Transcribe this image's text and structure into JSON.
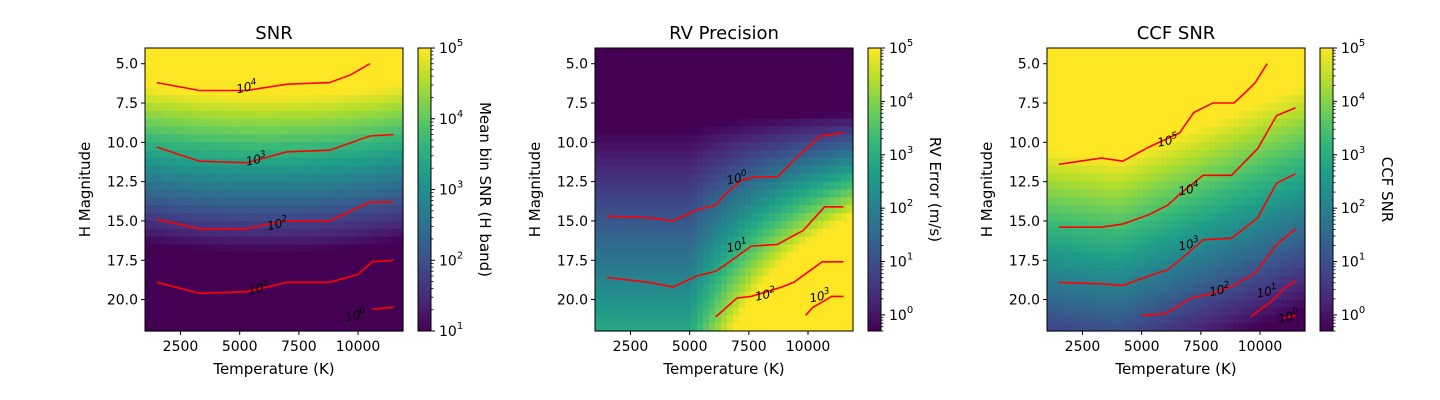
{
  "chart_data": [
    {
      "type": "heatmap",
      "title": "SNR",
      "xlabel": "Temperature (K)",
      "ylabel": "H Magnitude",
      "xlim": [
        1000,
        11900
      ],
      "ylim": [
        4.0,
        22.0
      ],
      "y_inverted": true,
      "xticks": [
        2500,
        5000,
        7500,
        10000
      ],
      "xtick_labels": [
        "2500",
        "5000",
        "7500",
        "10000"
      ],
      "yticks": [
        5.0,
        7.5,
        10.0,
        12.5,
        15.0,
        17.5,
        20.0
      ],
      "ytick_labels": [
        "5.0",
        "7.5",
        "10.0",
        "12.5",
        "15.0",
        "17.5",
        "20.0"
      ],
      "colorbar": {
        "label": "Mean bin SNR (H band)",
        "scale": "log",
        "range": [
          10,
          100000
        ],
        "ticks": [
          {
            "exp": 1,
            "base": "10",
            "sup": "1"
          },
          {
            "exp": 2,
            "base": "10",
            "sup": "2"
          },
          {
            "exp": 3,
            "base": "10",
            "sup": "3"
          },
          {
            "exp": 4,
            "base": "10",
            "sup": "4"
          },
          {
            "exp": 5,
            "base": "10",
            "sup": "5"
          }
        ]
      },
      "contour_color": "#ff0000",
      "contours": [
        {
          "level": "10^4",
          "base": "10",
          "sup": "4",
          "label_at": [
            5300,
            6.5
          ],
          "points": [
            [
              1500,
              6.2
            ],
            [
              3300,
              6.7
            ],
            [
              5300,
              6.7
            ],
            [
              7000,
              6.3
            ],
            [
              8800,
              6.2
            ],
            [
              9700,
              5.7
            ],
            [
              10500,
              5.0
            ]
          ]
        },
        {
          "level": "10^3",
          "base": "10",
          "sup": "3",
          "label_at": [
            5700,
            11.1
          ],
          "points": [
            [
              1500,
              10.3
            ],
            [
              3300,
              11.2
            ],
            [
              5300,
              11.3
            ],
            [
              7000,
              10.6
            ],
            [
              8800,
              10.5
            ],
            [
              10500,
              9.6
            ],
            [
              11500,
              9.5
            ]
          ]
        },
        {
          "level": "10^2",
          "base": "10",
          "sup": "2",
          "label_at": [
            6600,
            15.2
          ],
          "points": [
            [
              1500,
              14.9
            ],
            [
              3300,
              15.5
            ],
            [
              5300,
              15.5
            ],
            [
              6900,
              15.0
            ],
            [
              8800,
              15.0
            ],
            [
              10500,
              13.8
            ],
            [
              11500,
              13.8
            ]
          ]
        },
        {
          "level": "10^1",
          "base": "10",
          "sup": "1",
          "label_at": [
            5800,
            19.3
          ],
          "points": [
            [
              1500,
              18.9
            ],
            [
              3300,
              19.6
            ],
            [
              5300,
              19.5
            ],
            [
              7000,
              18.9
            ],
            [
              8800,
              18.9
            ],
            [
              10000,
              18.4
            ],
            [
              10600,
              17.6
            ],
            [
              11500,
              17.5
            ]
          ]
        },
        {
          "level": "10^0",
          "base": "10",
          "sup": "0",
          "label_at": [
            9900,
            21.0
          ],
          "points": [
            [
              10600,
              20.6
            ],
            [
              11500,
              20.5
            ]
          ]
        }
      ]
    },
    {
      "type": "heatmap",
      "title": "RV Precision",
      "xlabel": "Temperature (K)",
      "ylabel": "H Magnitude",
      "xlim": [
        1000,
        11900
      ],
      "ylim": [
        4.0,
        22.0
      ],
      "y_inverted": true,
      "xticks": [
        2500,
        5000,
        7500,
        10000
      ],
      "xtick_labels": [
        "2500",
        "5000",
        "7500",
        "10000"
      ],
      "yticks": [
        5.0,
        7.5,
        10.0,
        12.5,
        15.0,
        17.5,
        20.0
      ],
      "ytick_labels": [
        "5.0",
        "7.5",
        "10.0",
        "12.5",
        "15.0",
        "17.5",
        "20.0"
      ],
      "colorbar": {
        "label": "RV Error (m/s)",
        "scale": "log",
        "range": [
          0.5,
          100000
        ],
        "ticks": [
          {
            "exp": 0,
            "base": "10",
            "sup": "0"
          },
          {
            "exp": 1,
            "base": "10",
            "sup": "1"
          },
          {
            "exp": 2,
            "base": "10",
            "sup": "2"
          },
          {
            "exp": 3,
            "base": "10",
            "sup": "3"
          },
          {
            "exp": 4,
            "base": "10",
            "sup": "4"
          },
          {
            "exp": 5,
            "base": "10",
            "sup": "5"
          }
        ]
      },
      "contour_color": "#ff0000",
      "contours": [
        {
          "level": "10^0",
          "base": "10",
          "sup": "0",
          "label_at": [
            7000,
            12.3
          ],
          "points": [
            [
              1500,
              14.7
            ],
            [
              3300,
              14.8
            ],
            [
              4300,
              15.0
            ],
            [
              5300,
              14.3
            ],
            [
              6100,
              14.0
            ],
            [
              6500,
              13.3
            ],
            [
              7200,
              12.4
            ],
            [
              7800,
              12.2
            ],
            [
              8700,
              12.2
            ],
            [
              9500,
              11.0
            ],
            [
              10500,
              9.6
            ],
            [
              11500,
              9.4
            ]
          ]
        },
        {
          "level": "10^1",
          "base": "10",
          "sup": "1",
          "label_at": [
            7000,
            16.6
          ],
          "points": [
            [
              1500,
              18.6
            ],
            [
              3300,
              18.9
            ],
            [
              4300,
              19.2
            ],
            [
              5300,
              18.5
            ],
            [
              6100,
              18.2
            ],
            [
              6500,
              17.8
            ],
            [
              7600,
              16.6
            ],
            [
              8700,
              16.5
            ],
            [
              9800,
              15.6
            ],
            [
              10700,
              14.1
            ],
            [
              11500,
              14.1
            ]
          ]
        },
        {
          "level": "10^2",
          "base": "10",
          "sup": "2",
          "label_at": [
            8200,
            19.7
          ],
          "points": [
            [
              6100,
              21.1
            ],
            [
              7000,
              19.9
            ],
            [
              7600,
              19.8
            ],
            [
              8900,
              19.2
            ],
            [
              9400,
              18.9
            ],
            [
              10600,
              17.6
            ],
            [
              11500,
              17.6
            ]
          ]
        },
        {
          "level": "10^3",
          "base": "10",
          "sup": "3",
          "label_at": [
            10500,
            19.8
          ],
          "points": [
            [
              9900,
              21.0
            ],
            [
              10200,
              20.5
            ],
            [
              11000,
              19.8
            ],
            [
              11500,
              19.8
            ]
          ]
        }
      ]
    },
    {
      "type": "heatmap",
      "title": "CCF SNR",
      "xlabel": "Temperature (K)",
      "ylabel": "H Magnitude",
      "xlim": [
        1000,
        11900
      ],
      "ylim": [
        4.0,
        22.0
      ],
      "y_inverted": true,
      "xticks": [
        2500,
        5000,
        7500,
        10000
      ],
      "xtick_labels": [
        "2500",
        "5000",
        "7500",
        "10000"
      ],
      "yticks": [
        5.0,
        7.5,
        10.0,
        12.5,
        15.0,
        17.5,
        20.0
      ],
      "ytick_labels": [
        "5.0",
        "7.5",
        "10.0",
        "12.5",
        "15.0",
        "17.5",
        "20.0"
      ],
      "colorbar": {
        "label": "CCF SNR",
        "scale": "log",
        "range": [
          0.5,
          100000
        ],
        "ticks": [
          {
            "exp": 0,
            "base": "10",
            "sup": "0"
          },
          {
            "exp": 1,
            "base": "10",
            "sup": "1"
          },
          {
            "exp": 2,
            "base": "10",
            "sup": "2"
          },
          {
            "exp": 3,
            "base": "10",
            "sup": "3"
          },
          {
            "exp": 4,
            "base": "10",
            "sup": "4"
          },
          {
            "exp": 5,
            "base": "10",
            "sup": "5"
          }
        ]
      },
      "contour_color": "#ff0000",
      "contours": [
        {
          "level": "10^5",
          "base": "10",
          "sup": "5",
          "label_at": [
            6100,
            9.9
          ],
          "points": [
            [
              1500,
              11.4
            ],
            [
              3300,
              11.0
            ],
            [
              4200,
              11.2
            ],
            [
              5300,
              10.3
            ],
            [
              6600,
              9.4
            ],
            [
              7200,
              8.1
            ],
            [
              8000,
              7.5
            ],
            [
              8900,
              7.5
            ],
            [
              9400,
              6.8
            ],
            [
              9800,
              6.2
            ],
            [
              10300,
              5.0
            ]
          ]
        },
        {
          "level": "10^4",
          "base": "10",
          "sup": "4",
          "label_at": [
            7000,
            13.0
          ],
          "points": [
            [
              1500,
              15.4
            ],
            [
              3300,
              15.4
            ],
            [
              4200,
              15.2
            ],
            [
              5300,
              14.6
            ],
            [
              6100,
              14.0
            ],
            [
              6600,
              13.3
            ],
            [
              7600,
              12.1
            ],
            [
              8800,
              12.1
            ],
            [
              9900,
              10.4
            ],
            [
              10700,
              8.3
            ],
            [
              11500,
              7.8
            ]
          ]
        },
        {
          "level": "10^3",
          "base": "10",
          "sup": "3",
          "label_at": [
            7000,
            16.5
          ],
          "points": [
            [
              1500,
              18.9
            ],
            [
              3300,
              19.0
            ],
            [
              4200,
              19.1
            ],
            [
              5300,
              18.5
            ],
            [
              6100,
              18.1
            ],
            [
              6600,
              17.5
            ],
            [
              7600,
              16.2
            ],
            [
              8800,
              16.1
            ],
            [
              9900,
              14.8
            ],
            [
              10700,
              12.6
            ],
            [
              11500,
              12.0
            ]
          ]
        },
        {
          "level": "10^2",
          "base": "10",
          "sup": "2",
          "label_at": [
            8300,
            19.4
          ],
          "points": [
            [
              5000,
              21.0
            ],
            [
              6000,
              20.9
            ],
            [
              7100,
              19.9
            ],
            [
              8000,
              19.6
            ],
            [
              8900,
              19.1
            ],
            [
              9800,
              18.3
            ],
            [
              10700,
              16.5
            ],
            [
              11500,
              15.5
            ]
          ]
        },
        {
          "level": "10^1",
          "base": "10",
          "sup": "1",
          "label_at": [
            10300,
            19.5
          ],
          "points": [
            [
              9600,
              21.1
            ],
            [
              10500,
              20.1
            ],
            [
              11000,
              19.3
            ],
            [
              11500,
              18.8
            ]
          ]
        },
        {
          "level": "10^0",
          "base": "10",
          "sup": "0",
          "label_at": [
            11200,
            21.1
          ],
          "points": [
            [
              11000,
              21.2
            ],
            [
              11500,
              21.0
            ]
          ]
        }
      ]
    }
  ]
}
